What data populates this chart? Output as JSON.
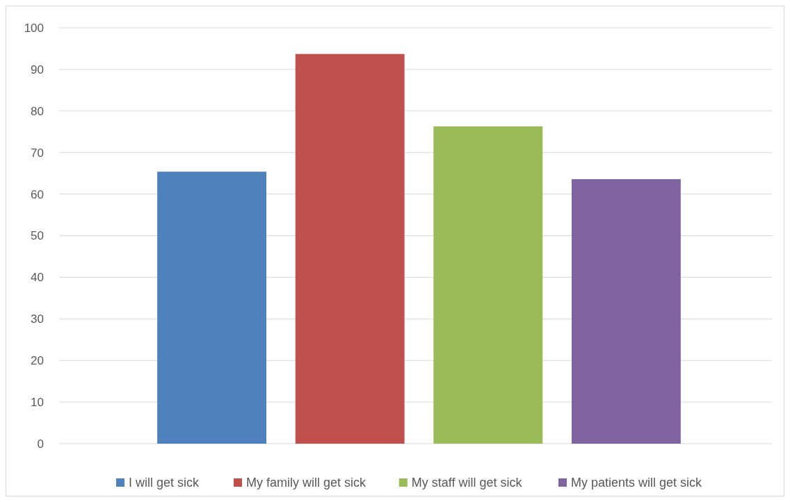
{
  "chart_data": {
    "type": "bar",
    "categories": [
      null
    ],
    "series": [
      {
        "name": "I will get sick",
        "color": "#4f81bd",
        "values": [
          65.4
        ]
      },
      {
        "name": "My family will get sick",
        "color": "#c0504d",
        "values": [
          93.7
        ]
      },
      {
        "name": "My staff will get sick",
        "color": "#9bbb59",
        "values": [
          76.3
        ]
      },
      {
        "name": "My patients will get sick",
        "color": "#8064a2",
        "values": [
          63.6
        ]
      }
    ],
    "ylim": [
      0,
      100
    ],
    "yticks": [
      0,
      10,
      20,
      30,
      40,
      50,
      60,
      70,
      80,
      90,
      100
    ],
    "grid": "y",
    "legend": "bottom"
  }
}
